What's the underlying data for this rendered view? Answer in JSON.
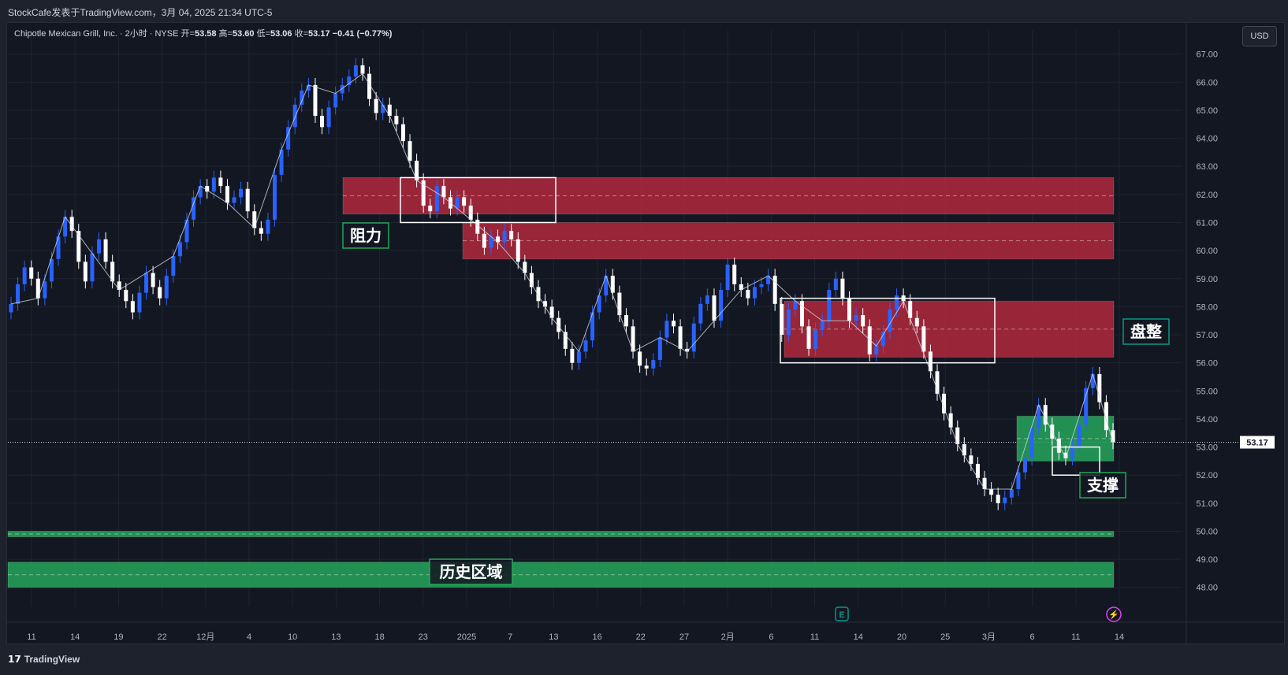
{
  "header": {
    "title": "StockCafe发表于TradingView.com，3月 04, 2025 21:34 UTC-5"
  },
  "legend": {
    "symbol": "Chipotle Mexican Grill, Inc. · 2小时 · NYSE",
    "open_label": "开=",
    "open": "53.58",
    "high_label": "高=",
    "high": "53.60",
    "low_label": "低=",
    "low": "53.06",
    "close_label": "收=",
    "close": "53.17",
    "change": "−0.41 (−0.77%)"
  },
  "currency_button": "USD",
  "brand": "TradingView",
  "colors": {
    "background": "#131722",
    "bull": "#2962ff",
    "bear": "#ffffff",
    "resistance_zone": "#b2283d",
    "support_zone": "#26a65b",
    "label_border_green": "#26a65b",
    "label_border_teal": "#089981"
  },
  "chart_data": {
    "type": "candlestick",
    "x_ticks": [
      "11",
      "14",
      "19",
      "22",
      "12月",
      "4",
      "10",
      "13",
      "18",
      "23",
      "2025",
      "7",
      "13",
      "16",
      "22",
      "27",
      "2月",
      "6",
      "11",
      "14",
      "20",
      "25",
      "3月",
      "6",
      "11",
      "14"
    ],
    "y_ticks": [
      "67.00",
      "66.00",
      "65.00",
      "64.00",
      "63.00",
      "62.00",
      "61.00",
      "60.00",
      "59.00",
      "58.00",
      "57.00",
      "56.00",
      "55.00",
      "54.00",
      "53.00",
      "52.00",
      "51.00",
      "50.00",
      "49.00",
      "48.00"
    ],
    "ylim": [
      47.6,
      67.3
    ],
    "last_price": "53.17",
    "close_series": [
      58.1,
      58.8,
      59.4,
      59.0,
      58.3,
      58.9,
      59.7,
      60.5,
      61.2,
      60.7,
      59.6,
      58.9,
      59.9,
      60.4,
      59.6,
      58.9,
      58.6,
      58.2,
      57.8,
      58.5,
      59.2,
      58.7,
      58.3,
      59.1,
      59.8,
      60.3,
      61.1,
      61.9,
      62.3,
      62.1,
      62.6,
      62.3,
      61.7,
      61.9,
      62.2,
      61.4,
      60.8,
      60.6,
      61.1,
      62.7,
      63.6,
      64.4,
      65.2,
      65.7,
      65.9,
      64.8,
      64.4,
      65.1,
      65.6,
      65.9,
      66.2,
      66.6,
      66.3,
      65.4,
      64.9,
      65.2,
      64.8,
      64.5,
      63.9,
      63.2,
      62.5,
      61.6,
      61.4,
      62.3,
      61.9,
      61.5,
      61.9,
      61.6,
      61.1,
      60.6,
      60.1,
      60.5,
      60.3,
      60.7,
      60.4,
      59.6,
      59.2,
      58.7,
      58.2,
      58.0,
      57.6,
      57.1,
      56.5,
      56.0,
      56.4,
      56.8,
      57.8,
      58.4,
      59.1,
      58.5,
      57.7,
      57.3,
      56.4,
      55.9,
      55.8,
      56.1,
      56.9,
      57.5,
      57.3,
      56.5,
      56.4,
      57.4,
      58.1,
      58.4,
      57.5,
      58.6,
      59.5,
      58.8,
      58.6,
      58.3,
      58.7,
      58.8,
      59.1,
      58.1,
      57.0,
      57.9,
      58.2,
      57.3,
      56.5,
      57.2,
      57.5,
      58.6,
      59.0,
      58.3,
      57.5,
      57.7,
      57.3,
      56.3,
      56.6,
      57.1,
      57.9,
      58.4,
      58.2,
      57.6,
      57.3,
      56.4,
      55.7,
      54.9,
      54.2,
      53.7,
      53.1,
      52.7,
      52.4,
      51.9,
      51.5,
      51.3,
      51.0,
      51.2,
      51.5,
      52.1,
      52.6,
      53.7,
      54.5,
      53.8,
      53.3,
      52.8,
      52.6,
      53.0,
      53.8,
      55.1,
      55.6,
      54.6,
      53.6,
      53.17
    ],
    "zones": [
      {
        "type": "resistance",
        "low": 61.3,
        "high": 62.6
      },
      {
        "type": "resistance",
        "low": 59.7,
        "high": 61.0
      },
      {
        "type": "resistance",
        "low": 56.2,
        "high": 58.2
      },
      {
        "type": "support",
        "low": 52.5,
        "high": 54.1
      },
      {
        "type": "historical",
        "low": 49.8,
        "high": 50.0
      },
      {
        "type": "historical",
        "low": 48.0,
        "high": 48.9
      }
    ],
    "annotations": [
      "阻力",
      "盘整",
      "支撑",
      "历史区域"
    ],
    "event_markers": [
      "E",
      "⚡"
    ]
  }
}
